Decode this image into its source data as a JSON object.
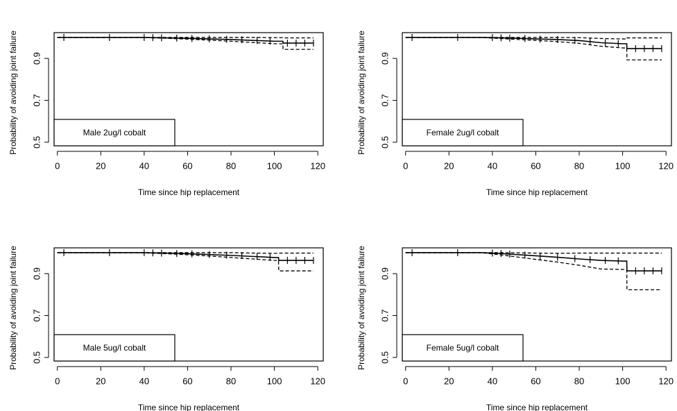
{
  "chart_data": [
    {
      "type": "line",
      "label": "Male 2ug/l cobalt",
      "xlabel": "Time since hip replacement",
      "ylabel": "Probability of avoiding joint failure",
      "xlim": [
        -1.5,
        122.5
      ],
      "ylim": [
        0.483,
        1.023
      ],
      "xticks": [
        0,
        20,
        40,
        60,
        80,
        100,
        120
      ],
      "yticks": [
        0.5,
        0.7,
        0.9
      ],
      "x": [
        0,
        38,
        50,
        60,
        70,
        80,
        90,
        100,
        103.9,
        104,
        118
      ],
      "series": [
        {
          "color": "#000000",
          "dash": false,
          "values": [
            1,
            1,
            0.998,
            0.996,
            0.993,
            0.99,
            0.986,
            0.982,
            0.982,
            0.973,
            0.973
          ]
        },
        {
          "color": "#000000",
          "dash": true,
          "values": [
            1,
            1,
            1,
            1,
            1,
            1,
            1,
            0.999,
            0.999,
            0.998,
            0.998
          ]
        },
        {
          "color": "#000000",
          "dash": true,
          "values": [
            1,
            1,
            0.996,
            0.992,
            0.987,
            0.982,
            0.976,
            0.97,
            0.97,
            0.943,
            0.943
          ]
        }
      ],
      "censored": {
        "x": [
          3,
          24,
          40,
          44,
          48,
          55,
          62,
          70,
          78,
          85,
          92,
          98,
          106,
          110,
          114,
          118
        ],
        "values": [
          1,
          1,
          1,
          0.999,
          0.998,
          0.997,
          0.995,
          0.993,
          0.991,
          0.989,
          0.986,
          0.983,
          0.973,
          0.973,
          0.973,
          0.973
        ]
      }
    },
    {
      "type": "line",
      "label": "Female 2ug/l cobalt",
      "xlabel": "Time since hip replacement",
      "ylabel": "Probability of avoiding joint failure",
      "xlim": [
        -1.5,
        122.5
      ],
      "ylim": [
        0.483,
        1.023
      ],
      "xticks": [
        0,
        20,
        40,
        60,
        80,
        100,
        120
      ],
      "yticks": [
        0.5,
        0.7,
        0.9
      ],
      "x": [
        0,
        35,
        45,
        60,
        70,
        80,
        90,
        100,
        101.9,
        102,
        118
      ],
      "series": [
        {
          "color": "#000000",
          "dash": false,
          "values": [
            1,
            1,
            0.998,
            0.993,
            0.99,
            0.985,
            0.975,
            0.97,
            0.97,
            0.947,
            0.947
          ]
        },
        {
          "color": "#000000",
          "dash": true,
          "values": [
            1,
            1,
            1,
            1,
            1,
            0.999,
            0.995,
            0.993,
            0.993,
            0.998,
            0.998
          ]
        },
        {
          "color": "#000000",
          "dash": true,
          "values": [
            1,
            1,
            0.994,
            0.986,
            0.98,
            0.972,
            0.958,
            0.95,
            0.95,
            0.893,
            0.893
          ]
        }
      ],
      "censored": {
        "x": [
          3,
          24,
          40,
          44,
          48,
          55,
          62,
          70,
          78,
          85,
          92,
          98,
          106,
          110,
          114,
          118
        ],
        "values": [
          1,
          1,
          0.999,
          0.998,
          0.997,
          0.995,
          0.992,
          0.99,
          0.986,
          0.982,
          0.975,
          0.971,
          0.947,
          0.947,
          0.947,
          0.947
        ]
      }
    },
    {
      "type": "line",
      "label": "Male 5ug/l cobalt",
      "xlabel": "Time since hip replacement",
      "ylabel": "Probability of avoiding joint failure",
      "xlim": [
        -1.5,
        122.5
      ],
      "ylim": [
        0.483,
        1.023
      ],
      "xticks": [
        0,
        20,
        40,
        60,
        80,
        100,
        120
      ],
      "yticks": [
        0.5,
        0.7,
        0.9
      ],
      "x": [
        0,
        38,
        50,
        60,
        70,
        80,
        90,
        100,
        101.9,
        102,
        118
      ],
      "series": [
        {
          "color": "#000000",
          "dash": false,
          "values": [
            1,
            1,
            0.998,
            0.995,
            0.991,
            0.987,
            0.982,
            0.977,
            0.977,
            0.963,
            0.963
          ]
        },
        {
          "color": "#000000",
          "dash": true,
          "values": [
            1,
            1,
            1,
            1,
            1,
            1,
            0.998,
            0.997,
            0.997,
            0.998,
            0.998
          ]
        },
        {
          "color": "#000000",
          "dash": true,
          "values": [
            1,
            1,
            0.995,
            0.99,
            0.984,
            0.977,
            0.97,
            0.963,
            0.963,
            0.913,
            0.913
          ]
        }
      ],
      "censored": {
        "x": [
          3,
          24,
          40,
          44,
          48,
          55,
          62,
          70,
          78,
          85,
          92,
          98,
          106,
          110,
          114,
          118
        ],
        "values": [
          1,
          1,
          1,
          0.999,
          0.998,
          0.996,
          0.994,
          0.991,
          0.988,
          0.986,
          0.982,
          0.978,
          0.963,
          0.963,
          0.963,
          0.963
        ]
      }
    },
    {
      "type": "line",
      "label": "Female 5ug/l cobalt",
      "xlabel": "Time since hip replacement",
      "ylabel": "Probability of avoiding joint failure",
      "xlim": [
        -1.5,
        122.5
      ],
      "ylim": [
        0.483,
        1.023
      ],
      "xticks": [
        0,
        20,
        40,
        60,
        80,
        100,
        120
      ],
      "yticks": [
        0.5,
        0.7,
        0.9
      ],
      "x": [
        0,
        35,
        45,
        60,
        70,
        80,
        90,
        100,
        101.9,
        102,
        118
      ],
      "series": [
        {
          "color": "#000000",
          "dash": false,
          "values": [
            1,
            1,
            0.995,
            0.985,
            0.978,
            0.97,
            0.963,
            0.96,
            0.96,
            0.913,
            0.913
          ]
        },
        {
          "color": "#000000",
          "dash": true,
          "values": [
            1,
            1,
            1,
            0.998,
            0.997,
            0.998,
            0.998,
            0.998,
            0.998,
            0.998,
            0.998
          ]
        },
        {
          "color": "#000000",
          "dash": true,
          "values": [
            1,
            1,
            0.988,
            0.968,
            0.955,
            0.94,
            0.922,
            0.92,
            0.92,
            0.823,
            0.823
          ]
        }
      ],
      "censored": {
        "x": [
          3,
          24,
          40,
          44,
          48,
          55,
          62,
          70,
          78,
          85,
          92,
          98,
          106,
          110,
          114,
          118
        ],
        "values": [
          1,
          1,
          0.998,
          0.996,
          0.993,
          0.988,
          0.983,
          0.978,
          0.972,
          0.967,
          0.963,
          0.961,
          0.913,
          0.913,
          0.913,
          0.913
        ]
      }
    }
  ]
}
